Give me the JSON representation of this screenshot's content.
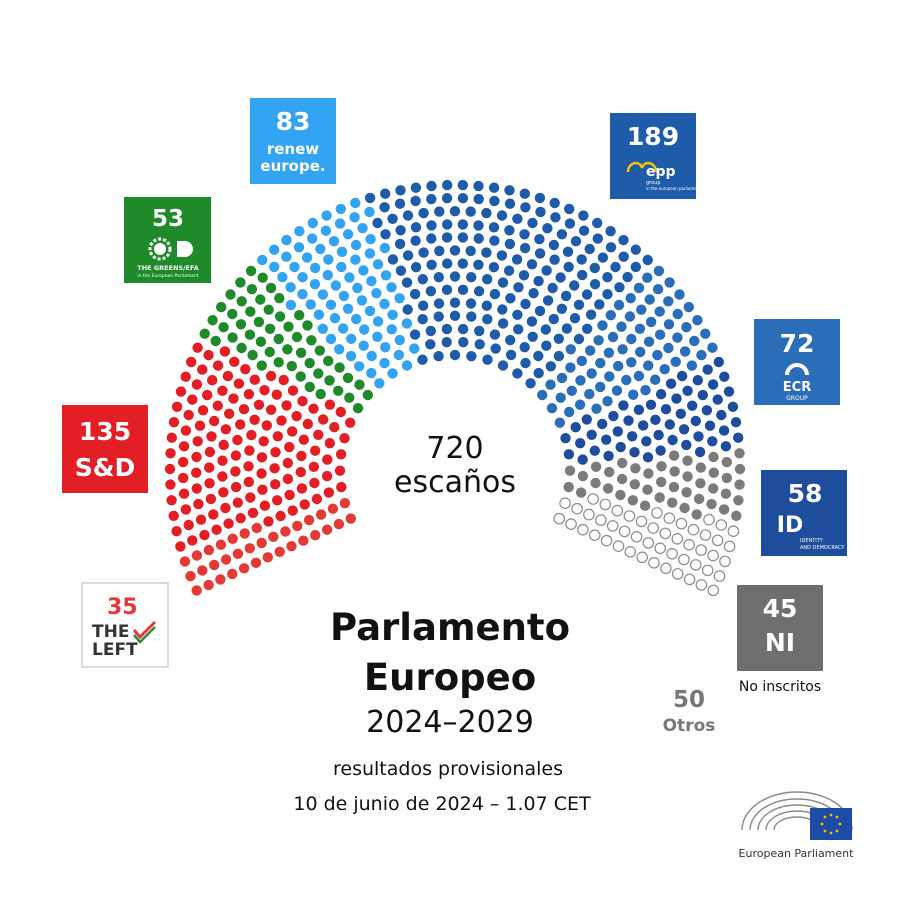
{
  "chart_data": {
    "type": "parliament",
    "title": "Parlamento Europeo",
    "title_line1": "Parlamento",
    "title_line2": "Europeo",
    "period": "2024–2029",
    "subtitle": "resultados provisionales",
    "date_line": "10 de junio de 2024 – 1.07 CET",
    "total_value": "720",
    "total_label": "escaños",
    "total_seats": 720,
    "parties": [
      {
        "id": "left",
        "value": 35,
        "label": "35",
        "logo_text": [
          "THE",
          "LEFT"
        ],
        "color": "#e53935"
      },
      {
        "id": "sd",
        "value": 135,
        "label": "135",
        "logo_text": [
          "S&D"
        ],
        "color": "#e31e24"
      },
      {
        "id": "greens",
        "value": 53,
        "label": "53",
        "logo_text": [
          "THE GREENS/EFA",
          "in the European Parliament"
        ],
        "color": "#1e8a2a"
      },
      {
        "id": "renew",
        "value": 83,
        "label": "83",
        "logo_text": [
          "renew",
          "europe."
        ],
        "color": "#33a3f4"
      },
      {
        "id": "epp",
        "value": 189,
        "label": "189",
        "logo_text": [
          "epp",
          "group",
          "in the european parliament"
        ],
        "color": "#1e5ba8"
      },
      {
        "id": "ecr",
        "value": 72,
        "label": "72",
        "logo_text": [
          "ECR",
          "GROUP"
        ],
        "color": "#2a6db8"
      },
      {
        "id": "id",
        "value": 58,
        "label": "58",
        "logo_text": [
          "ID",
          "IDENTITY",
          "AND DEMOCRACY"
        ],
        "color": "#1d4d9c"
      },
      {
        "id": "ni",
        "value": 45,
        "label": "45",
        "logo_text": [
          "NI"
        ],
        "sublabel": "No inscritos",
        "color": "#7b7b7b"
      },
      {
        "id": "others",
        "value": 50,
        "label": "50",
        "sublabel": "Otros",
        "color": "#b0b0b0"
      }
    ]
  },
  "brand": {
    "name": "European Parliament"
  },
  "colors": {
    "left_logo_bg": "#ffffff",
    "sd_bg": "#e31e24",
    "greens_bg": "#1e8a2a",
    "renew_bg": "#33a3f4",
    "epp_bg": "#1e5ba8",
    "ecr_bg": "#2a6db8",
    "id_bg": "#1d4d9c",
    "ni_bg": "#6f6f6f",
    "ep_flag": "#1d4ba6"
  }
}
